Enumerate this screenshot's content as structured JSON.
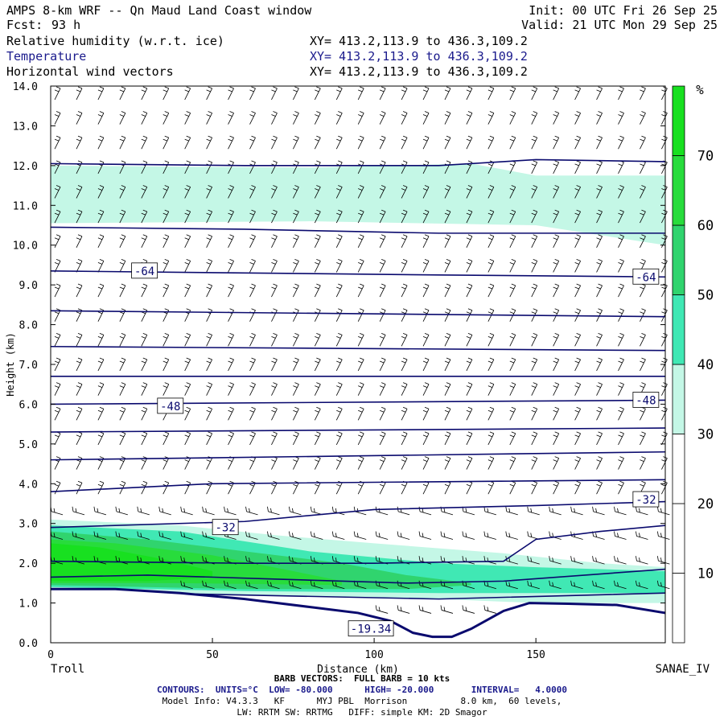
{
  "header": {
    "title": "AMPS 8-km WRF -- Qn Maud Land Coast window",
    "fcst_label": "Fcst:",
    "fcst_value": "93 h",
    "init": "Init: 00 UTC Fri 26 Sep 25",
    "valid": "Valid: 21 UTC Mon 29 Sep 25",
    "fields": [
      {
        "name": "Relative humidity (w.r.t. ice)",
        "xy": "XY= 413.2,113.9 to 436.3,109.2"
      },
      {
        "name": "Temperature",
        "xy": "XY= 413.2,113.9 to 436.3,109.2"
      },
      {
        "name": "Horizontal wind vectors",
        "xy": "XY= 413.2,113.9 to 436.3,109.2"
      }
    ]
  },
  "colors": {
    "temp_contour": "#0a0a6e",
    "rh_30": "#c4f7e6",
    "rh_40": "#40e8b4",
    "rh_50": "#30d46e",
    "rh_60": "#28dc3c",
    "rh_70": "#18e020"
  },
  "chart_data": {
    "type": "cross-section",
    "xlabel": "Distance (km)",
    "ylabel": "Height (km)",
    "xlim": [
      0,
      190
    ],
    "ylim": [
      0,
      14
    ],
    "x_ticks": [
      0,
      50,
      100,
      150
    ],
    "y_ticks": [
      "0.0",
      "1.0",
      "2.0",
      "3.0",
      "4.0",
      "5.0",
      "6.0",
      "7.0",
      "8.0",
      "9.0",
      "10.0",
      "11.0",
      "12.0",
      "13.0",
      "14.0"
    ],
    "left_end_label": "Troll",
    "right_end_label": "SANAE_IV",
    "colorbar": {
      "unit": "%",
      "labels": [
        "10",
        "20",
        "30",
        "40",
        "50",
        "60",
        "70"
      ],
      "levels": [
        0,
        10,
        20,
        30,
        40,
        50,
        60,
        70,
        80
      ],
      "colors": [
        "#ffffff",
        "#ffffff",
        "#ffffff",
        "#c4f7e6",
        "#40e8b4",
        "#30d46e",
        "#28dc3c",
        "#18e020"
      ]
    },
    "terrain_km": [
      [
        0,
        1.35
      ],
      [
        20,
        1.35
      ],
      [
        40,
        1.25
      ],
      [
        60,
        1.1
      ],
      [
        80,
        0.9
      ],
      [
        95,
        0.75
      ],
      [
        105,
        0.55
      ],
      [
        112,
        0.25
      ],
      [
        118,
        0.15
      ],
      [
        124,
        0.15
      ],
      [
        130,
        0.35
      ],
      [
        140,
        0.8
      ],
      [
        148,
        1.0
      ],
      [
        160,
        0.98
      ],
      [
        175,
        0.95
      ],
      [
        190,
        0.75
      ]
    ],
    "contour_labels": [
      {
        "text": "-64",
        "x": 29,
        "y": 9.35
      },
      {
        "text": "-64",
        "x": 184,
        "y": 9.2
      },
      {
        "text": "-48",
        "x": 37,
        "y": 5.95
      },
      {
        "text": "-48",
        "x": 184,
        "y": 6.1
      },
      {
        "text": "-32",
        "x": 54,
        "y": 2.9
      },
      {
        "text": "-32",
        "x": 184,
        "y": 3.6
      },
      {
        "text": "-19.34",
        "x": 99,
        "y": 0.35
      }
    ],
    "isotherms_km": [
      [
        [
          0,
          12.05
        ],
        [
          60,
          12.0
        ],
        [
          120,
          12.0
        ],
        [
          150,
          12.15
        ],
        [
          190,
          12.1
        ]
      ],
      [
        [
          0,
          10.45
        ],
        [
          60,
          10.4
        ],
        [
          120,
          10.3
        ],
        [
          190,
          10.3
        ]
      ],
      [
        [
          0,
          9.35
        ],
        [
          60,
          9.3
        ],
        [
          120,
          9.25
        ],
        [
          190,
          9.2
        ]
      ],
      [
        [
          0,
          8.35
        ],
        [
          190,
          8.2
        ]
      ],
      [
        [
          0,
          7.45
        ],
        [
          190,
          7.35
        ]
      ],
      [
        [
          0,
          6.7
        ],
        [
          190,
          6.7
        ]
      ],
      [
        [
          0,
          6.0
        ],
        [
          190,
          6.1
        ]
      ],
      [
        [
          0,
          5.3
        ],
        [
          190,
          5.4
        ]
      ],
      [
        [
          0,
          4.6
        ],
        [
          190,
          4.8
        ]
      ],
      [
        [
          0,
          3.8
        ],
        [
          50,
          4.0
        ],
        [
          190,
          4.1
        ]
      ],
      [
        [
          0,
          2.9
        ],
        [
          60,
          3.05
        ],
        [
          100,
          3.35
        ],
        [
          150,
          3.45
        ],
        [
          190,
          3.55
        ]
      ],
      [
        [
          0,
          2.05
        ],
        [
          60,
          2.0
        ],
        [
          100,
          2.0
        ],
        [
          140,
          2.05
        ],
        [
          150,
          2.6
        ],
        [
          170,
          2.8
        ],
        [
          190,
          2.95
        ]
      ],
      [
        [
          0,
          1.65
        ],
        [
          30,
          1.7
        ],
        [
          70,
          1.6
        ],
        [
          110,
          1.5
        ],
        [
          140,
          1.55
        ],
        [
          190,
          1.85
        ]
      ],
      [
        [
          0,
          1.3
        ],
        [
          60,
          1.2
        ],
        [
          120,
          1.1
        ],
        [
          190,
          1.25
        ]
      ]
    ],
    "rh_regions_km": [
      {
        "level": 30,
        "top": [
          [
            0,
            12.0
          ],
          [
            80,
            11.95
          ],
          [
            130,
            12.05
          ],
          [
            150,
            11.75
          ],
          [
            190,
            11.75
          ]
        ],
        "bottom": [
          [
            0,
            10.55
          ],
          [
            80,
            10.6
          ],
          [
            150,
            10.5
          ],
          [
            190,
            10.0
          ]
        ]
      },
      {
        "level": 30,
        "top": [
          [
            0,
            3.1
          ],
          [
            40,
            2.95
          ],
          [
            70,
            2.7
          ],
          [
            100,
            2.5
          ],
          [
            140,
            2.25
          ],
          [
            170,
            2.0
          ],
          [
            190,
            1.9
          ]
        ],
        "bottom": [
          [
            0,
            1.35
          ],
          [
            60,
            1.2
          ],
          [
            120,
            1.1
          ],
          [
            150,
            1.0
          ],
          [
            190,
            1.0
          ]
        ]
      },
      {
        "level": 40,
        "top": [
          [
            0,
            2.95
          ],
          [
            40,
            2.8
          ],
          [
            80,
            2.3
          ],
          [
            120,
            2.0
          ],
          [
            150,
            1.9
          ],
          [
            190,
            1.8
          ]
        ],
        "bottom": [
          [
            0,
            1.4
          ],
          [
            60,
            1.3
          ],
          [
            120,
            1.25
          ],
          [
            190,
            1.25
          ]
        ]
      },
      {
        "level": 50,
        "top": [
          [
            0,
            2.8
          ],
          [
            30,
            2.6
          ],
          [
            60,
            2.3
          ],
          [
            90,
            2.0
          ],
          [
            110,
            1.7
          ],
          [
            130,
            1.5
          ]
        ],
        "bottom": [
          [
            0,
            1.45
          ],
          [
            60,
            1.35
          ],
          [
            110,
            1.35
          ],
          [
            130,
            1.45
          ]
        ]
      },
      {
        "level": 60,
        "top": [
          [
            0,
            2.6
          ],
          [
            20,
            2.5
          ],
          [
            50,
            2.2
          ],
          [
            75,
            1.8
          ],
          [
            90,
            1.55
          ]
        ],
        "bottom": [
          [
            0,
            1.5
          ],
          [
            40,
            1.5
          ],
          [
            90,
            1.45
          ]
        ]
      },
      {
        "level": 70,
        "top": [
          [
            0,
            2.5
          ],
          [
            15,
            2.4
          ],
          [
            35,
            2.1
          ],
          [
            50,
            1.8
          ]
        ],
        "bottom": [
          [
            0,
            1.55
          ],
          [
            30,
            1.55
          ],
          [
            50,
            1.65
          ]
        ]
      }
    ]
  },
  "footer": {
    "barb": "BARB VECTORS:  FULL BARB = 10 kts",
    "contours": "CONTOURS:  UNITS=°C  LOW= -80.000      HIGH= -20.000       INTERVAL=   4.0000",
    "model1": "Model Info: V4.3.3   KF      MYJ PBL  Morrison          8.0 km,  60 levels,",
    "model2": "LW: RRTM SW: RRTMG   DIFF: simple KM: 2D Smagor"
  }
}
